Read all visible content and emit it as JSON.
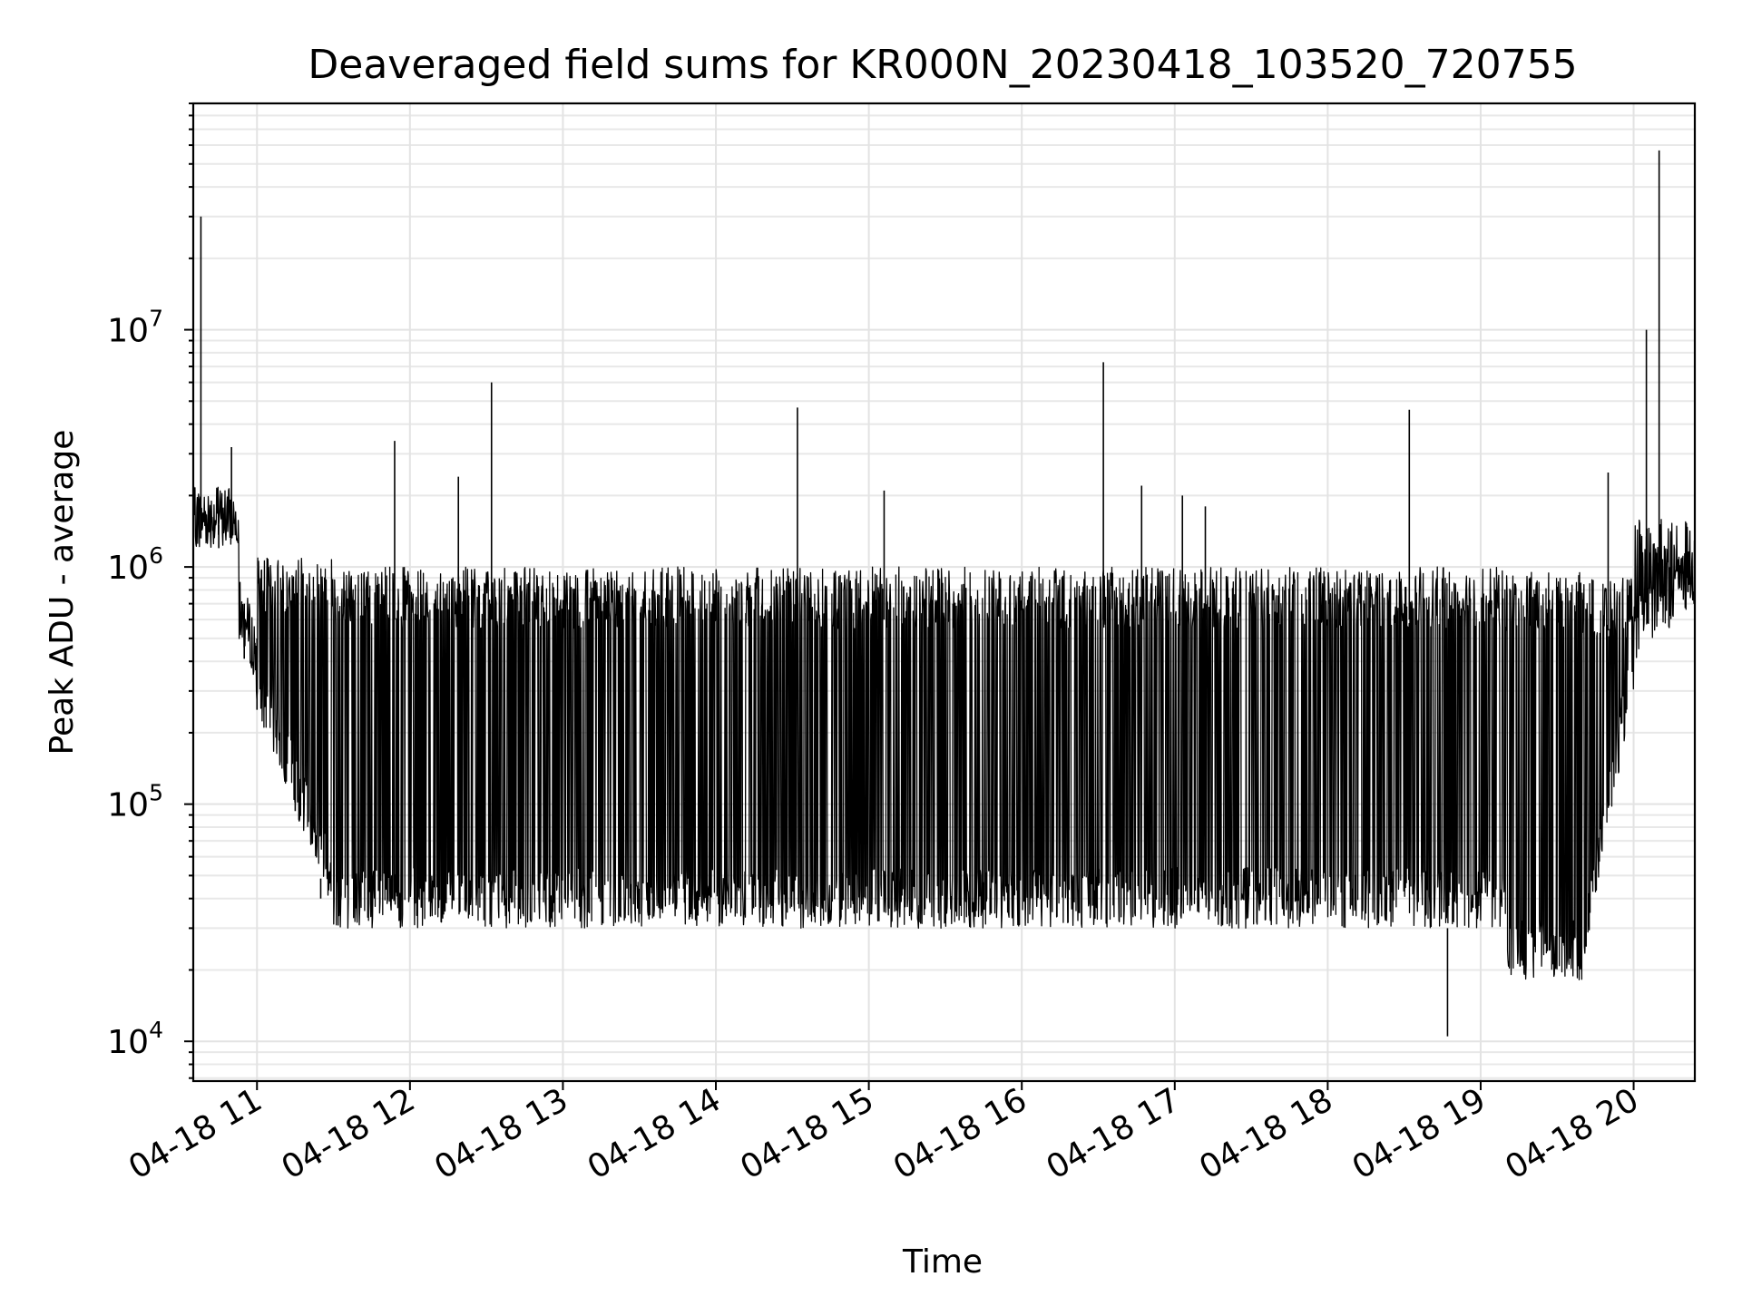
{
  "chart_data": {
    "type": "line",
    "title": "Deaveraged field sums for KR000N_20230418_103520_720755",
    "xlabel": "Time",
    "ylabel": "Peak ADU - average",
    "yscale": "log",
    "xlim": [
      "2023-04-18 10:35",
      "2023-04-18 20:24"
    ],
    "ylim": [
      6800,
      90000000
    ],
    "grid": "major and minor",
    "x_ticks": [
      {
        "value": "2023-04-18 11:00",
        "label": "04-18 11"
      },
      {
        "value": "2023-04-18 12:00",
        "label": "04-18 12"
      },
      {
        "value": "2023-04-18 13:00",
        "label": "04-18 13"
      },
      {
        "value": "2023-04-18 14:00",
        "label": "04-18 14"
      },
      {
        "value": "2023-04-18 15:00",
        "label": "04-18 15"
      },
      {
        "value": "2023-04-18 16:00",
        "label": "04-18 16"
      },
      {
        "value": "2023-04-18 17:00",
        "label": "04-18 17"
      },
      {
        "value": "2023-04-18 18:00",
        "label": "04-18 18"
      },
      {
        "value": "2023-04-18 19:00",
        "label": "04-18 19"
      },
      {
        "value": "2023-04-18 20:00",
        "label": "04-18 20"
      }
    ],
    "y_ticks": [
      {
        "value": 10000,
        "base": "10",
        "exp": "4"
      },
      {
        "value": 100000,
        "base": "10",
        "exp": "5"
      },
      {
        "value": 1000000,
        "base": "10",
        "exp": "6"
      },
      {
        "value": 10000000,
        "base": "10",
        "exp": "7"
      }
    ],
    "series": [
      {
        "color": "#000000",
        "description_points": [
          {
            "x": "2023-04-18 10:35",
            "y": 2000000
          },
          {
            "x": "2023-04-18 10:38",
            "y": 30000000
          },
          {
            "x": "2023-04-18 10:45",
            "y": 1500000
          },
          {
            "x": "2023-04-18 10:50",
            "y": 3200000
          },
          {
            "x": "2023-04-18 10:55",
            "y": 700000
          },
          {
            "x": "2023-04-18 11:00",
            "y": 500000
          },
          {
            "x": "2023-04-18 11:15",
            "y": 300000
          },
          {
            "x": "2023-04-18 11:25",
            "y": 40000
          },
          {
            "x": "2023-04-18 11:54",
            "y": 3400000
          },
          {
            "x": "2023-04-18 12:19",
            "y": 2400000
          },
          {
            "x": "2023-04-18 12:32",
            "y": 6000000
          },
          {
            "x": "2023-04-18 14:32",
            "y": 4700000
          },
          {
            "x": "2023-04-18 15:06",
            "y": 2100000
          },
          {
            "x": "2023-04-18 16:32",
            "y": 7300000
          },
          {
            "x": "2023-04-18 16:47",
            "y": 2200000
          },
          {
            "x": "2023-04-18 17:03",
            "y": 2000000
          },
          {
            "x": "2023-04-18 17:12",
            "y": 1800000
          },
          {
            "x": "2023-04-18 18:32",
            "y": 4600000
          },
          {
            "x": "2023-04-18 18:47",
            "y": 10500
          },
          {
            "x": "2023-04-18 19:50",
            "y": 2500000
          },
          {
            "x": "2023-04-18 20:05",
            "y": 10000000
          },
          {
            "x": "2023-04-18 20:10",
            "y": 57000000
          },
          {
            "x": "2023-04-18 20:24",
            "y": 800000
          }
        ]
      }
    ]
  }
}
